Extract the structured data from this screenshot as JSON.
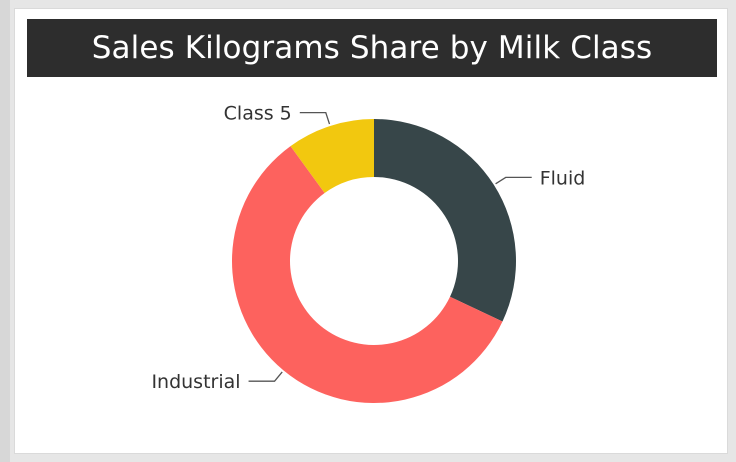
{
  "chart_data": {
    "type": "pie",
    "title": "Sales Kilograms Share by Milk Class",
    "categories": [
      "Fluid",
      "Industrial",
      "Class 5"
    ],
    "values": [
      32,
      58,
      10
    ],
    "colors": [
      "#374649",
      "#FD625E",
      "#F2C80F"
    ],
    "donut": true
  }
}
